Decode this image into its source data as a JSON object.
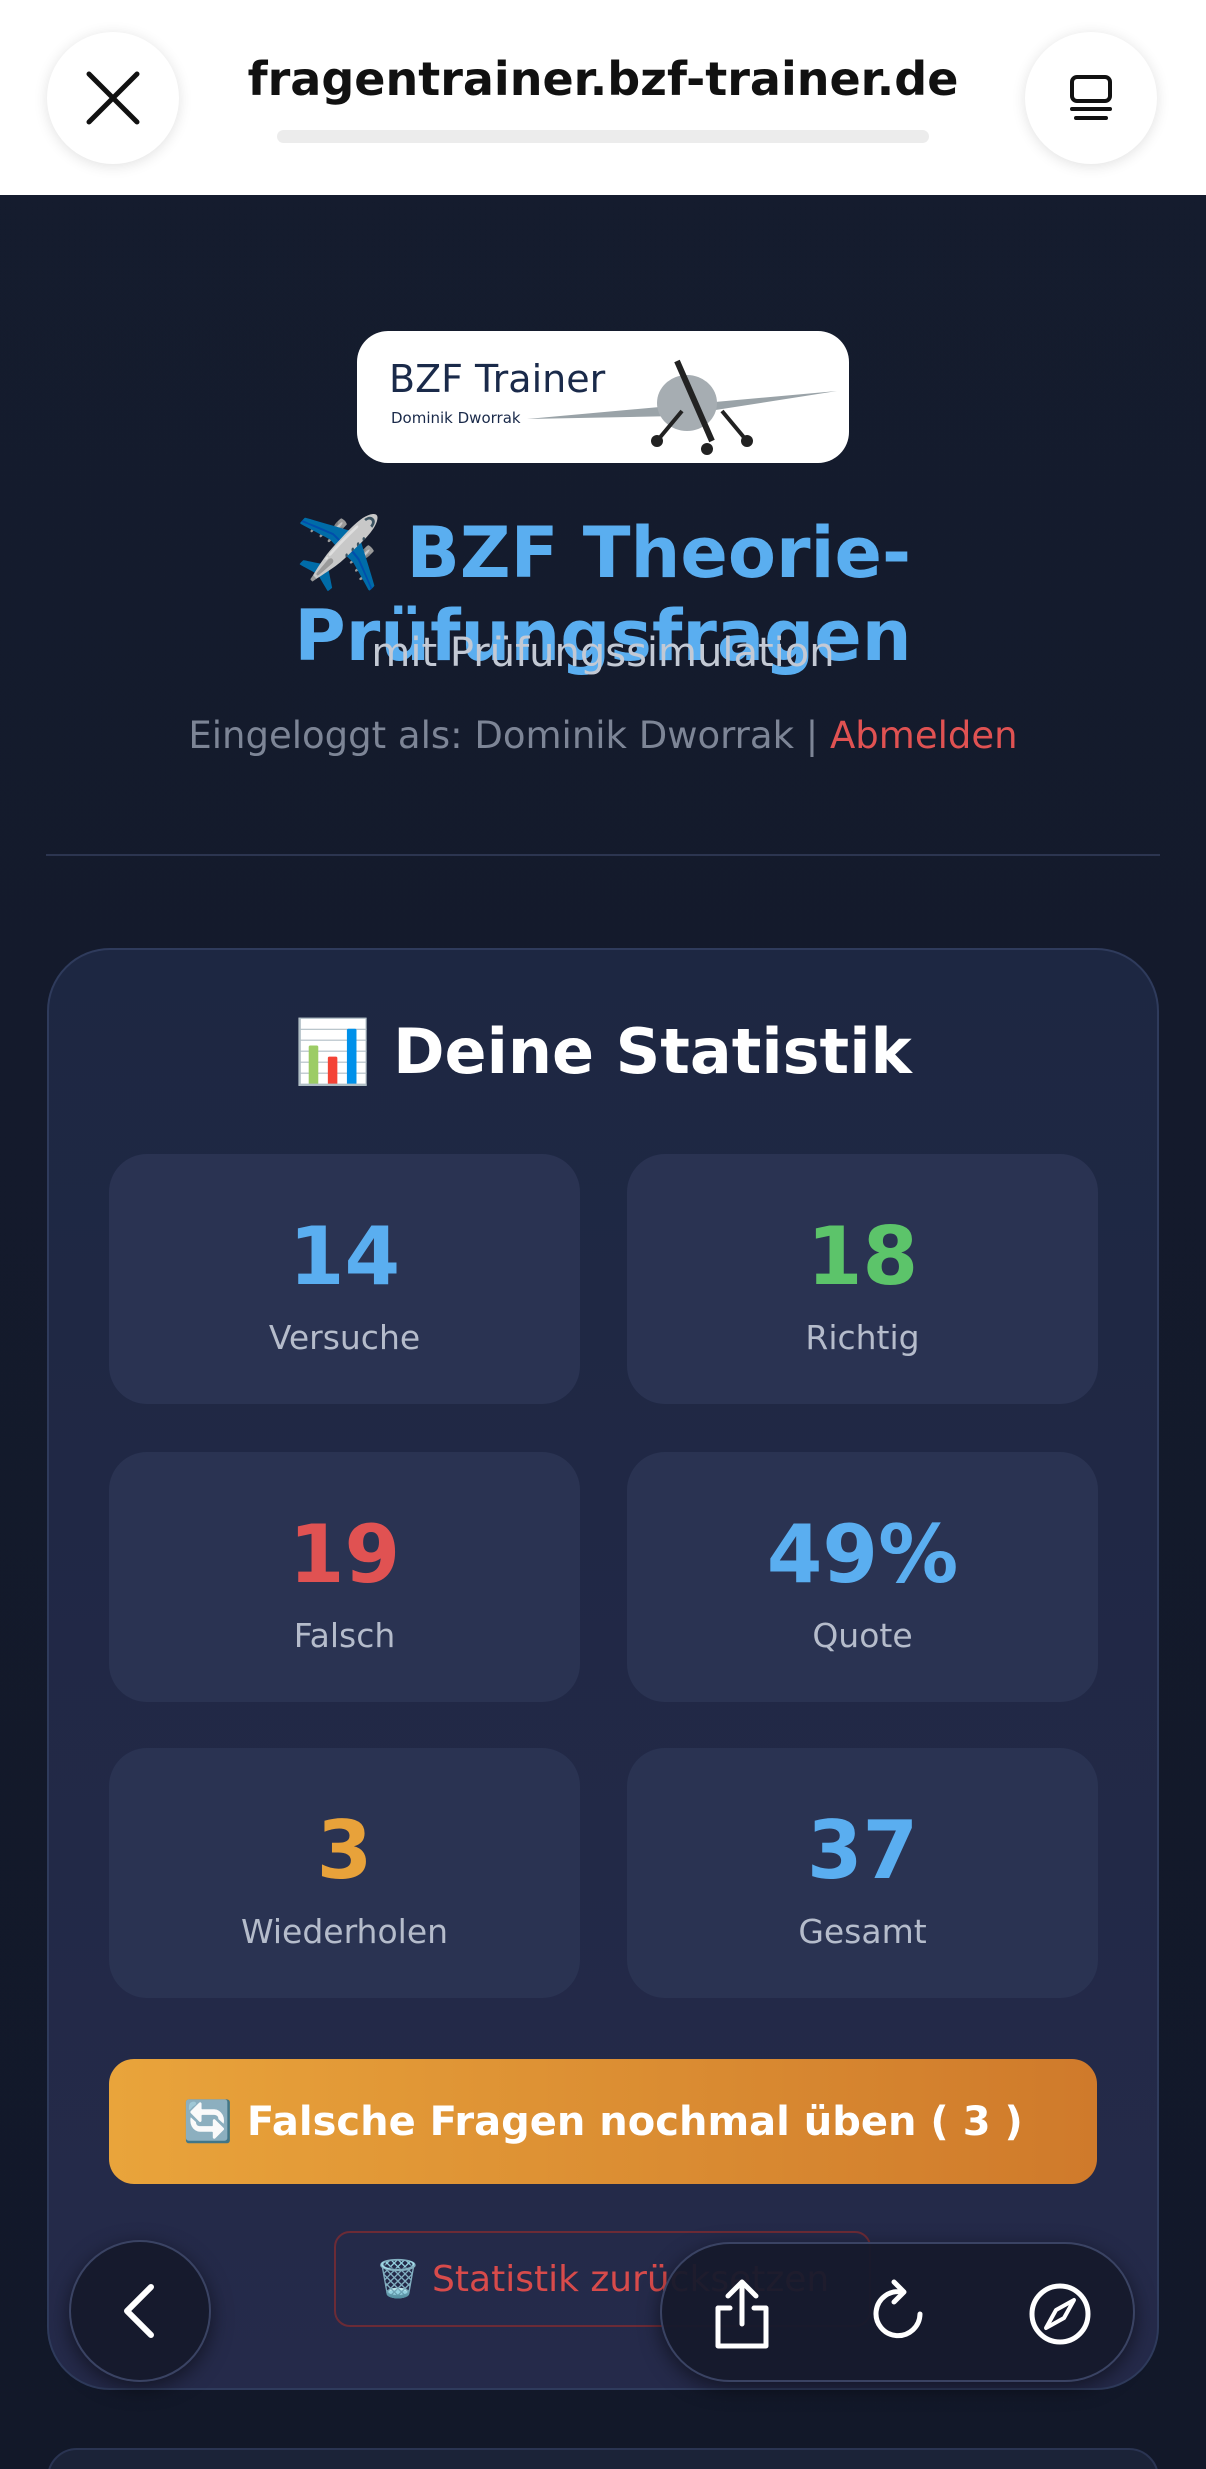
{
  "browser": {
    "url": "fragentrainer.bzf-trainer.de"
  },
  "logo": {
    "title": "BZF Trainer",
    "subtitle": "Dominik Dworrak"
  },
  "header": {
    "title": "✈️ BZF Theorie-Prüfungsfragen",
    "subtitle": "mit Prüfungssimulation",
    "login_prefix": "Eingeloggt als: Dominik Dworrak",
    "separator": "|",
    "logout": "Abmelden"
  },
  "stats": {
    "title": "📊 Deine Statistik",
    "tiles": [
      {
        "value": "14",
        "label": "Versuche",
        "color": "#5aaef0"
      },
      {
        "value": "18",
        "label": "Richtig",
        "color": "#5cc46a"
      },
      {
        "value": "19",
        "label": "Falsch",
        "color": "#e05252"
      },
      {
        "value": "49%",
        "label": "Quote",
        "color": "#5aaef0"
      },
      {
        "value": "3",
        "label": "Wiederholen",
        "color": "#e8a23a"
      },
      {
        "value": "37",
        "label": "Gesamt",
        "color": "#5aaef0"
      }
    ],
    "retry_button": {
      "text": "🔄 Falsche Fragen nochmal üben (",
      "count": "3",
      "close": ")"
    },
    "reset_button": "🗑️ Statistik zurücksetzen"
  }
}
